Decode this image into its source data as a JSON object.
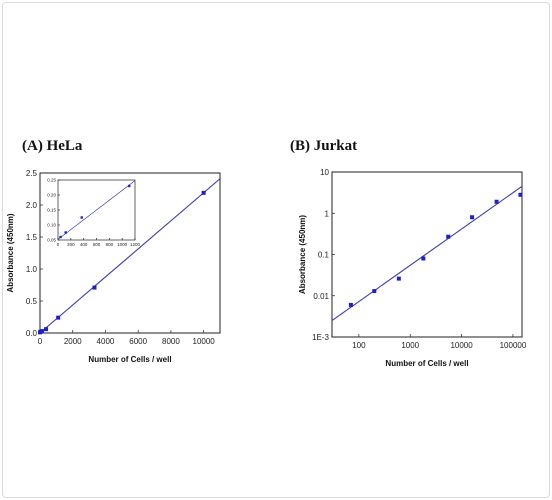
{
  "chart_data": [
    {
      "panel": "A",
      "type": "scatter",
      "title": "(A)  HeLa",
      "xlabel": "Number of Cells / well",
      "ylabel": "Absorbance (450nm)",
      "xlim": [
        0,
        11000
      ],
      "ylim": [
        0,
        2.5
      ],
      "xticks": [
        0,
        2000,
        4000,
        6000,
        8000,
        10000
      ],
      "yticks": [
        0.0,
        0.5,
        1.0,
        1.5,
        2.0,
        2.5
      ],
      "xtick_labels": [
        "0",
        "2000",
        "4000",
        "6000",
        "8000",
        "10000"
      ],
      "ytick_labels": [
        "0.0",
        "0.5",
        "1.0",
        "1.5",
        "2.0",
        "2.5"
      ],
      "x": [
        0,
        40,
        120,
        370,
        1110,
        3330,
        10000
      ],
      "y": [
        0.01,
        0.02,
        0.03,
        0.06,
        0.24,
        0.71,
        2.19
      ],
      "fit_line": {
        "x": [
          0,
          11000
        ],
        "y": [
          0.0,
          2.41
        ]
      },
      "marker_color": "#1f1fc8",
      "line_color": "#3a3ab0",
      "inset": {
        "xlim": [
          0,
          1200
        ],
        "ylim": [
          0.05,
          0.25
        ],
        "xticks": [
          0,
          200,
          400,
          600,
          800,
          1000,
          1200
        ],
        "yticks": [
          0.05,
          0.1,
          0.15,
          0.2,
          0.25
        ],
        "xtick_labels": [
          "0",
          "200",
          "400",
          "600",
          "800",
          "1000",
          "1200"
        ],
        "ytick_labels": [
          "0.05",
          "0.10",
          "0.15",
          "0.20",
          "0.25"
        ],
        "x": [
          40,
          120,
          370,
          1110
        ],
        "y": [
          0.06,
          0.075,
          0.125,
          0.23
        ],
        "fit_line": {
          "x": [
            0,
            1200
          ],
          "y": [
            0.052,
            0.248
          ]
        }
      }
    },
    {
      "panel": "B",
      "type": "scatter",
      "title": "(B)  Jurkat",
      "xlabel": "Number of Cells / well",
      "ylabel": "Absorbance (450nm)",
      "xscale": "log",
      "yscale": "log",
      "xlim": [
        30,
        150000
      ],
      "ylim": [
        0.001,
        10
      ],
      "xticks": [
        100,
        1000,
        10000,
        100000
      ],
      "yticks": [
        0.001,
        0.01,
        0.1,
        1,
        10
      ],
      "xtick_labels": [
        "100",
        "1000",
        "10000",
        "100000"
      ],
      "ytick_labels": [
        "1E-3",
        "0.01",
        "0.1",
        "1",
        "10"
      ],
      "x": [
        70,
        200,
        600,
        1800,
        5500,
        16000,
        48000,
        140000
      ],
      "y": [
        0.006,
        0.013,
        0.026,
        0.08,
        0.27,
        0.8,
        1.9,
        2.8
      ],
      "fit_line": {
        "x": [
          30,
          150000
        ],
        "y": [
          0.0025,
          4.5
        ]
      },
      "marker_color": "#1f1fc8",
      "line_color": "#3a3ab0"
    }
  ]
}
